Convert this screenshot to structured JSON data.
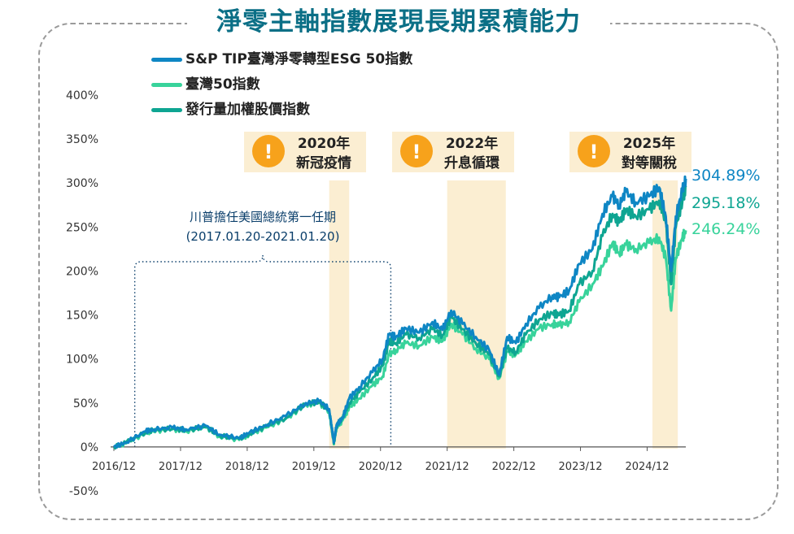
{
  "title": "淨零主軸指數展現長期累積能力",
  "legend": [
    {
      "name": "S&P TIP臺灣淨零轉型ESG 50指數",
      "color": "#0e86c4"
    },
    {
      "name": "臺灣50指數",
      "color": "#38d39b"
    },
    {
      "name": "發行量加權股價指數",
      "color": "#0ea592"
    }
  ],
  "events": [
    {
      "year": "2020年",
      "label": "新冠疫情",
      "icon": "exclamation-icon"
    },
    {
      "year": "2022年",
      "label": "升息循環",
      "icon": "exclamation-icon"
    },
    {
      "year": "2025年",
      "label": "對等關稅",
      "icon": "exclamation-icon"
    }
  ],
  "term": {
    "line1": "川普擔任美國總統第一任期",
    "line2": "(2017.01.20-2021.01.20)"
  },
  "end_labels": [
    "304.89%",
    "295.18%",
    "246.24%"
  ],
  "chart_data": {
    "type": "line",
    "title": "淨零主軸指數展現長期累積能力",
    "x_tick_labels": [
      "2016/12",
      "2017/12",
      "2018/12",
      "2019/12",
      "2020/12",
      "2021/12",
      "2022/12",
      "2023/12",
      "2024/12"
    ],
    "y_tick_labels": [
      "400%",
      "350%",
      "300%",
      "250%",
      "200%",
      "150%",
      "100%",
      "50%",
      "0%",
      "-50%"
    ],
    "ylim": [
      -50,
      400
    ],
    "xlim": [
      2016.92,
      2025.5
    ],
    "grid": false,
    "legend_position": "top-left",
    "shaded_periods": [
      {
        "label": "2020年 新冠疫情",
        "start": 2020.15,
        "end": 2020.45
      },
      {
        "label": "2022年 升息循環",
        "start": 2021.92,
        "end": 2022.8
      },
      {
        "label": "2025年 對等關稅",
        "start": 2025.0,
        "end": 2025.38
      }
    ],
    "term_period": {
      "label": "川普擔任美國總統第一任期",
      "start": 2017.05,
      "end": 2021.05
    },
    "series": [
      {
        "name": "S&P TIP臺灣淨零轉型ESG 50指數",
        "x": [
          2016.92,
          2017.1,
          2017.4,
          2017.5,
          2017.8,
          2018.0,
          2018.3,
          2018.5,
          2018.8,
          2018.95,
          2019.2,
          2019.5,
          2019.8,
          2020.0,
          2020.15,
          2020.22,
          2020.26,
          2020.35,
          2020.45,
          2020.6,
          2020.8,
          2020.95,
          2021.05,
          2021.15,
          2021.3,
          2021.5,
          2021.7,
          2021.85,
          2021.98,
          2022.15,
          2022.35,
          2022.55,
          2022.7,
          2022.82,
          2022.95,
          2023.1,
          2023.3,
          2023.5,
          2023.6,
          2023.75,
          2023.9,
          2024.1,
          2024.25,
          2024.4,
          2024.5,
          2024.6,
          2024.75,
          2024.95,
          2025.1,
          2025.2,
          2025.28,
          2025.35,
          2025.45,
          2025.5
        ],
        "values": [
          0,
          5,
          18,
          20,
          22,
          20,
          24,
          14,
          10,
          16,
          25,
          35,
          50,
          52,
          43,
          5,
          25,
          33,
          55,
          68,
          85,
          100,
          128,
          125,
          135,
          130,
          142,
          133,
          155,
          140,
          125,
          110,
          82,
          125,
          118,
          140,
          158,
          172,
          170,
          178,
          208,
          225,
          265,
          285,
          275,
          290,
          278,
          285,
          295,
          262,
          200,
          262,
          292,
          304.89
        ]
      },
      {
        "name": "臺灣50指數",
        "x": [
          2016.92,
          2017.1,
          2017.4,
          2017.5,
          2017.8,
          2018.0,
          2018.3,
          2018.5,
          2018.8,
          2018.95,
          2019.2,
          2019.5,
          2019.8,
          2020.0,
          2020.15,
          2020.22,
          2020.26,
          2020.35,
          2020.45,
          2020.6,
          2020.8,
          2020.95,
          2021.05,
          2021.15,
          2021.3,
          2021.5,
          2021.7,
          2021.85,
          2021.98,
          2022.15,
          2022.35,
          2022.55,
          2022.7,
          2022.82,
          2022.95,
          2023.1,
          2023.3,
          2023.5,
          2023.6,
          2023.75,
          2023.9,
          2024.1,
          2024.25,
          2024.4,
          2024.5,
          2024.6,
          2024.75,
          2024.95,
          2025.1,
          2025.2,
          2025.28,
          2025.35,
          2025.45,
          2025.5
        ],
        "values": [
          0,
          4,
          16,
          18,
          20,
          18,
          22,
          12,
          8,
          14,
          22,
          32,
          48,
          50,
          40,
          3,
          22,
          30,
          45,
          55,
          70,
          80,
          105,
          110,
          118,
          115,
          125,
          120,
          140,
          128,
          112,
          100,
          78,
          108,
          105,
          120,
          135,
          140,
          138,
          142,
          165,
          185,
          205,
          232,
          220,
          230,
          225,
          232,
          238,
          215,
          155,
          215,
          238,
          246.24
        ]
      },
      {
        "name": "發行量加權股價指數",
        "x": [
          2016.92,
          2017.1,
          2017.4,
          2017.5,
          2017.8,
          2018.0,
          2018.3,
          2018.5,
          2018.8,
          2018.95,
          2019.2,
          2019.5,
          2019.8,
          2020.0,
          2020.15,
          2020.22,
          2020.26,
          2020.35,
          2020.45,
          2020.6,
          2020.8,
          2020.95,
          2021.05,
          2021.15,
          2021.3,
          2021.5,
          2021.7,
          2021.85,
          2021.98,
          2022.15,
          2022.35,
          2022.55,
          2022.7,
          2022.82,
          2022.95,
          2023.1,
          2023.3,
          2023.5,
          2023.6,
          2023.75,
          2023.9,
          2024.1,
          2024.25,
          2024.4,
          2024.5,
          2024.6,
          2024.75,
          2024.95,
          2025.1,
          2025.2,
          2025.28,
          2025.35,
          2025.45,
          2025.5
        ],
        "values": [
          0,
          5,
          17,
          19,
          21,
          19,
          23,
          13,
          9,
          15,
          23,
          33,
          49,
          51,
          42,
          4,
          24,
          32,
          50,
          62,
          78,
          92,
          120,
          118,
          128,
          124,
          134,
          127,
          148,
          134,
          118,
          105,
          80,
          112,
          108,
          128,
          145,
          152,
          150,
          155,
          185,
          200,
          240,
          265,
          255,
          270,
          262,
          270,
          280,
          255,
          185,
          250,
          280,
          295.18
        ]
      }
    ]
  }
}
